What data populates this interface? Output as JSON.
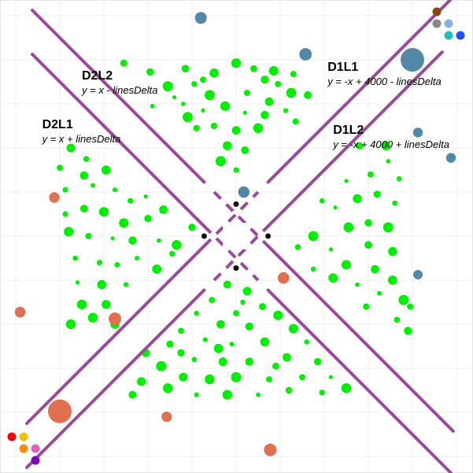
{
  "chart_data": {
    "type": "scatter",
    "title": "",
    "xlabel": "",
    "ylabel": "",
    "grid": true,
    "xlim": [
      0,
      4000
    ],
    "ylim": [
      0,
      4000
    ],
    "lines": [
      {
        "name": "D2L2",
        "equation": "y = x - linesDelta",
        "delta": -200,
        "kind": "diag-up",
        "label_at": [
          600,
          3420
        ]
      },
      {
        "name": "D2L1",
        "equation": "y = x + linesDelta",
        "delta": 200,
        "kind": "diag-up",
        "label_at": [
          240,
          2980
        ]
      },
      {
        "name": "D1L1",
        "equation": "y = -x + 4000 - linesDelta",
        "delta": -200,
        "kind": "diag-down",
        "label_at": [
          2830,
          3500
        ]
      },
      {
        "name": "D1L2",
        "equation": "y = -x + 4000 + linesDelta",
        "delta": 200,
        "kind": "diag-down",
        "label_at": [
          2880,
          2930
        ]
      }
    ],
    "line_color": "#9b4a9b",
    "intersections": [
      [
        2000,
        2290
      ],
      [
        2290,
        2000
      ],
      [
        2000,
        1710
      ],
      [
        1710,
        2000
      ]
    ],
    "green_points": [
      [
        980,
        3570
      ],
      [
        1220,
        3490
      ],
      [
        1540,
        3520
      ],
      [
        1800,
        3480
      ],
      [
        2000,
        3570
      ],
      [
        2160,
        3520
      ],
      [
        2340,
        3500
      ],
      [
        2520,
        3470
      ],
      [
        2260,
        3420
      ],
      [
        1380,
        3360
      ],
      [
        1620,
        3380
      ],
      [
        1760,
        3280
      ],
      [
        2100,
        3300
      ],
      [
        2300,
        3220
      ],
      [
        2500,
        3300
      ],
      [
        2650,
        3280
      ],
      [
        1240,
        3180
      ],
      [
        1520,
        3200
      ],
      [
        1700,
        3140
      ],
      [
        1900,
        3180
      ],
      [
        2080,
        3120
      ],
      [
        2260,
        3100
      ],
      [
        2450,
        3140
      ],
      [
        1800,
        3000
      ],
      [
        2000,
        2960
      ],
      [
        2200,
        2980
      ],
      [
        1640,
        2980
      ],
      [
        1920,
        2820
      ],
      [
        2080,
        2780
      ],
      [
        1860,
        2680
      ],
      [
        2000,
        2600
      ],
      [
        1560,
        3080
      ],
      [
        2540,
        3040
      ],
      [
        1440,
        3260
      ],
      [
        2380,
        3380
      ],
      [
        1700,
        3420
      ],
      [
        500,
        2800
      ],
      [
        400,
        2620
      ],
      [
        640,
        2700
      ],
      [
        820,
        2600
      ],
      [
        450,
        2420
      ],
      [
        700,
        2460
      ],
      [
        900,
        2420
      ],
      [
        1040,
        2320
      ],
      [
        450,
        2200
      ],
      [
        620,
        2250
      ],
      [
        800,
        2220
      ],
      [
        980,
        2120
      ],
      [
        1200,
        2160
      ],
      [
        480,
        2040
      ],
      [
        660,
        2000
      ],
      [
        880,
        1980
      ],
      [
        1060,
        1960
      ],
      [
        1300,
        1960
      ],
      [
        1460,
        1920
      ],
      [
        1600,
        2080
      ],
      [
        540,
        1800
      ],
      [
        760,
        1760
      ],
      [
        920,
        1740
      ],
      [
        1100,
        1800
      ],
      [
        1280,
        1700
      ],
      [
        560,
        1580
      ],
      [
        780,
        1560
      ],
      [
        1000,
        1560
      ],
      [
        600,
        1380
      ],
      [
        820,
        1380
      ],
      [
        500,
        1200
      ],
      [
        700,
        1260
      ],
      [
        900,
        1200
      ],
      [
        1420,
        1840
      ],
      [
        1180,
        2360
      ],
      [
        620,
        2550
      ],
      [
        1340,
        2240
      ],
      [
        3120,
        2820
      ],
      [
        3380,
        2680
      ],
      [
        3220,
        2560
      ],
      [
        3000,
        2500
      ],
      [
        3480,
        2520
      ],
      [
        3280,
        2380
      ],
      [
        3100,
        2340
      ],
      [
        2900,
        2260
      ],
      [
        3440,
        2300
      ],
      [
        3200,
        2120
      ],
      [
        3020,
        2080
      ],
      [
        3380,
        2080
      ],
      [
        2700,
        2000
      ],
      [
        3200,
        1920
      ],
      [
        2860,
        1880
      ],
      [
        3420,
        1860
      ],
      [
        3000,
        1740
      ],
      [
        3260,
        1700
      ],
      [
        2700,
        1700
      ],
      [
        3420,
        1600
      ],
      [
        3100,
        1560
      ],
      [
        2880,
        1620
      ],
      [
        3300,
        1480
      ],
      [
        3520,
        1420
      ],
      [
        3180,
        1360
      ],
      [
        3460,
        1240
      ],
      [
        3560,
        1140
      ],
      [
        2560,
        1900
      ],
      [
        3360,
        2820
      ],
      [
        3580,
        1360
      ],
      [
        2780,
        2320
      ],
      [
        1920,
        1560
      ],
      [
        2100,
        1500
      ],
      [
        1780,
        1420
      ],
      [
        2240,
        1360
      ],
      [
        2000,
        1300
      ],
      [
        1640,
        1300
      ],
      [
        2380,
        1280
      ],
      [
        1860,
        1200
      ],
      [
        2120,
        1180
      ],
      [
        1500,
        1140
      ],
      [
        2520,
        1160
      ],
      [
        1720,
        1060
      ],
      [
        1960,
        1020
      ],
      [
        2260,
        1040
      ],
      [
        2640,
        1040
      ],
      [
        1400,
        1020
      ],
      [
        1180,
        940
      ],
      [
        1620,
        880
      ],
      [
        1880,
        860
      ],
      [
        2120,
        860
      ],
      [
        2460,
        900
      ],
      [
        2740,
        860
      ],
      [
        1320,
        820
      ],
      [
        1520,
        720
      ],
      [
        1760,
        700
      ],
      [
        2000,
        720
      ],
      [
        2300,
        700
      ],
      [
        2600,
        720
      ],
      [
        2860,
        720
      ],
      [
        1140,
        680
      ],
      [
        1380,
        620
      ],
      [
        1640,
        560
      ],
      [
        1920,
        560
      ],
      [
        2200,
        560
      ],
      [
        2480,
        600
      ],
      [
        2780,
        580
      ],
      [
        3000,
        620
      ],
      [
        1060,
        560
      ],
      [
        2360,
        820
      ],
      [
        1500,
        940
      ],
      [
        2060,
        1400
      ],
      [
        1840,
        980
      ]
    ],
    "orange_points": [
      [
        350,
        2350
      ],
      [
        2430,
        1620
      ],
      [
        900,
        1250
      ],
      [
        1370,
        360
      ],
      [
        2310,
        60
      ],
      [
        40,
        1310
      ],
      [
        400,
        410
      ]
    ],
    "blue_points": [
      [
        1680,
        3980
      ],
      [
        2630,
        3650
      ],
      [
        2070,
        2400
      ],
      [
        3650,
        2940
      ],
      [
        3950,
        2710
      ],
      [
        3650,
        1650
      ],
      [
        3600,
        3600
      ]
    ],
    "legend_dots": [
      {
        "color": "#8b4513"
      },
      {
        "color": "#888888"
      },
      {
        "color": "#87b5e0"
      },
      {
        "color": "#20c0c0"
      },
      {
        "color": "#1e50ff"
      },
      {
        "color": "#ff0000"
      },
      {
        "color": "#f0c000"
      },
      {
        "color": "#ff8c00"
      },
      {
        "color": "#e060c0"
      },
      {
        "color": "#8000c0"
      }
    ]
  }
}
